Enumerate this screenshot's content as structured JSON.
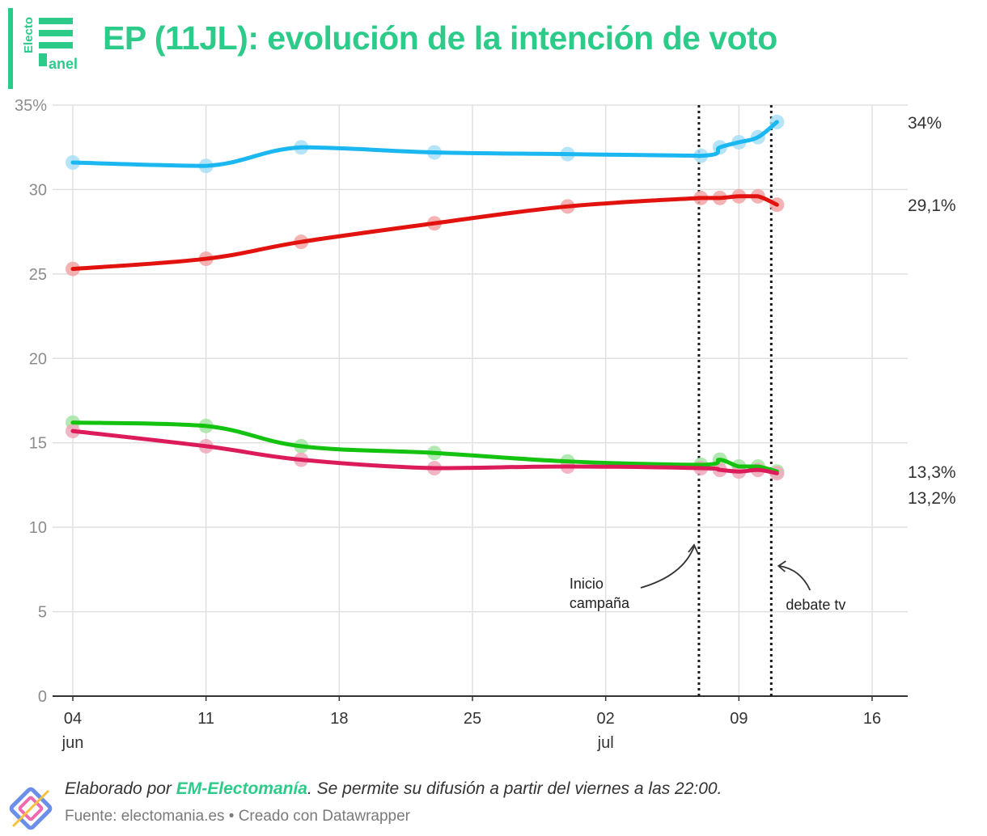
{
  "header": {
    "title": "EP (11JL): evolución de la intención de voto",
    "logo_text_top": "Electo",
    "logo_text_bottom": "anel"
  },
  "footer": {
    "prefix": "Elaborado por ",
    "brand": "EM-Electomanía",
    "suffix": ". Se permite su difusión a partir del viernes a las 22:00.",
    "source": "Fuente: electomania.es • Creado con Datawrapper"
  },
  "colors": {
    "accent": "#2dcb8a",
    "grid": "#e0e0e0",
    "axis_text": "#8c8c8c"
  },
  "chart_data": {
    "type": "line",
    "title": "EP (11JL): evolución de la intención de voto",
    "xlabel": "",
    "ylabel": "",
    "ylim": [
      0,
      35
    ],
    "xlim_days": [
      4,
      47
    ],
    "y_ticks": [
      {
        "value": 35,
        "label": "35%"
      },
      {
        "value": 30,
        "label": "30"
      },
      {
        "value": 25,
        "label": "25"
      },
      {
        "value": 20,
        "label": "20"
      },
      {
        "value": 15,
        "label": "15"
      },
      {
        "value": 10,
        "label": "10"
      },
      {
        "value": 5,
        "label": "5"
      },
      {
        "value": 0,
        "label": "0"
      }
    ],
    "x_ticks": [
      {
        "day": 4,
        "label": "04",
        "sub": "jun"
      },
      {
        "day": 11,
        "label": "11",
        "sub": ""
      },
      {
        "day": 18,
        "label": "18",
        "sub": ""
      },
      {
        "day": 25,
        "label": "25",
        "sub": ""
      },
      {
        "day": 32,
        "label": "02",
        "sub": "jul"
      },
      {
        "day": 39,
        "label": "09",
        "sub": ""
      },
      {
        "day": 46,
        "label": "16",
        "sub": ""
      }
    ],
    "series": [
      {
        "name": "blue",
        "color": "#1ab7f1",
        "dot_color": "#a8def7",
        "end_label": "34%",
        "x": [
          4,
          11,
          16,
          23,
          30,
          37,
          38,
          39,
          40,
          41
        ],
        "values": [
          31.6,
          31.4,
          32.5,
          32.2,
          32.1,
          32.0,
          32.5,
          32.8,
          33.1,
          34.0
        ]
      },
      {
        "name": "red",
        "color": "#e2120f",
        "dot_color": "#f2a4a4",
        "end_label": "29,1%",
        "x": [
          4,
          11,
          16,
          23,
          30,
          37,
          38,
          39,
          40,
          41
        ],
        "values": [
          25.3,
          25.9,
          26.9,
          28.0,
          29.0,
          29.5,
          29.5,
          29.6,
          29.6,
          29.1
        ]
      },
      {
        "name": "green",
        "color": "#14c30f",
        "dot_color": "#a5e5a4",
        "end_label": "13,3%",
        "x": [
          4,
          11,
          16,
          23,
          30,
          37,
          38,
          39,
          40,
          41
        ],
        "values": [
          16.2,
          16.0,
          14.8,
          14.4,
          13.9,
          13.7,
          14.0,
          13.6,
          13.6,
          13.3
        ]
      },
      {
        "name": "crimson",
        "color": "#dc1c5a",
        "dot_color": "#f0a8bb",
        "end_label": "13,2%",
        "x": [
          4,
          11,
          16,
          23,
          30,
          37,
          38,
          39,
          40,
          41
        ],
        "values": [
          15.7,
          14.8,
          14.0,
          13.5,
          13.6,
          13.5,
          13.4,
          13.3,
          13.4,
          13.2
        ]
      }
    ],
    "annotations": [
      {
        "label_lines": [
          "Inicio",
          "campaña"
        ],
        "day": 36.9
      },
      {
        "label_lines": [
          "debate tv"
        ],
        "day": 40.7
      }
    ]
  }
}
